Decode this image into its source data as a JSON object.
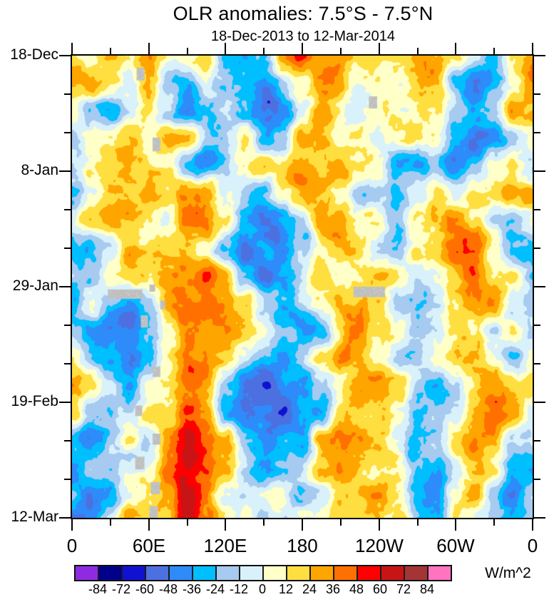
{
  "title": "OLR anomalies: 7.5°S - 7.5°N",
  "subtitle": "18-Dec-2013 to 12-Mar-2014",
  "axes": {
    "y": {
      "major": [
        {
          "label": "18-Dec",
          "day": 0
        },
        {
          "label": "8-Jan",
          "day": 21
        },
        {
          "label": "29-Jan",
          "day": 42
        },
        {
          "label": "19-Feb",
          "day": 63
        },
        {
          "label": "12-Mar",
          "day": 84
        }
      ],
      "minor_days": [
        7,
        14,
        28,
        35,
        49,
        56,
        70,
        77
      ],
      "span_days": 84
    },
    "x": {
      "major": [
        {
          "label": "0",
          "lon": 0
        },
        {
          "label": "60E",
          "lon": 60
        },
        {
          "label": "120E",
          "lon": 120
        },
        {
          "label": "180",
          "lon": 180
        },
        {
          "label": "120W",
          "lon": 240
        },
        {
          "label": "60W",
          "lon": 300
        },
        {
          "label": "0",
          "lon": 360
        }
      ],
      "minor_lons": [
        30,
        90,
        150,
        210,
        270,
        330
      ],
      "span_lons": 360
    }
  },
  "colorbar": {
    "units": "W/m^2",
    "tick_labels": [
      "-84",
      "-72",
      "-60",
      "-48",
      "-36",
      "-24",
      "-12",
      "0",
      "12",
      "24",
      "36",
      "48",
      "60",
      "72",
      "84"
    ],
    "box_colors": [
      "#8e2be2",
      "#00008b",
      "#1111d2",
      "#4d70e0",
      "#2e8bfa",
      "#00bfff",
      "#a6caf0",
      "#d9f1fa",
      "#ffffc8",
      "#ffde40",
      "#ffa500",
      "#ff7000",
      "#ff0000",
      "#c81414",
      "#a33535",
      "#ff73c0"
    ]
  },
  "chart_data": {
    "type": "heatmap",
    "title": "OLR anomalies: 7.5°S - 7.5°N",
    "subtitle": "18-Dec-2013 to 12-Mar-2014",
    "value_units": "W/m^2",
    "xlabel_ticks": [
      "0",
      "60E",
      "120E",
      "180",
      "120W",
      "60W",
      "0"
    ],
    "ylabel_ticks": [
      "18-Dec",
      "8-Jan",
      "29-Jan",
      "19-Feb",
      "12-Mar"
    ],
    "x_axis": "longitude_deg_east_0_to_360",
    "y_axis": "days_since_18_Dec_2013",
    "levels": [
      -84,
      -72,
      -60,
      -48,
      -36,
      -24,
      -12,
      0,
      12,
      24,
      36,
      48,
      60,
      72,
      84
    ],
    "palette": [
      "#8e2be2",
      "#00008b",
      "#1111d2",
      "#4d70e0",
      "#2e8bfa",
      "#00bfff",
      "#a6caf0",
      "#d9f1fa",
      "#ffffc8",
      "#ffde40",
      "#ffa500",
      "#ff7000",
      "#ff0000",
      "#c81414",
      "#a33535",
      "#ff73c0"
    ],
    "missing_color": "#bfbfbf",
    "x_lons": [
      0,
      15,
      30,
      45,
      60,
      75,
      90,
      105,
      120,
      135,
      150,
      165,
      180,
      195,
      210,
      225,
      240,
      255,
      270,
      285,
      300,
      315,
      330,
      345,
      360
    ],
    "y_days": [
      0,
      5,
      10,
      15,
      20,
      25,
      30,
      35,
      40,
      45,
      50,
      55,
      60,
      65,
      70,
      75,
      80,
      84
    ],
    "values": [
      [
        24,
        8,
        20,
        6,
        28,
        4,
        8,
        22,
        -20,
        -30,
        -20,
        40,
        52,
        30,
        30,
        10,
        6,
        20,
        30,
        24,
        10,
        -10,
        -20,
        20,
        40
      ],
      [
        30,
        36,
        10,
        -10,
        24,
        -24,
        -40,
        -10,
        -30,
        -36,
        -48,
        -20,
        10,
        36,
        24,
        8,
        6,
        10,
        28,
        20,
        -30,
        -55,
        -30,
        10,
        30
      ],
      [
        6,
        -20,
        -44,
        -10,
        20,
        -10,
        -48,
        -30,
        -10,
        -30,
        -52,
        -44,
        -10,
        20,
        8,
        4,
        10,
        6,
        20,
        10,
        -20,
        -40,
        -20,
        24,
        20
      ],
      [
        -10,
        8,
        20,
        26,
        10,
        30,
        20,
        -10,
        -20,
        8,
        -30,
        -20,
        24,
        30,
        6,
        4,
        -10,
        6,
        10,
        8,
        -30,
        -50,
        -36,
        -10,
        10
      ],
      [
        -20,
        6,
        24,
        30,
        24,
        10,
        -20,
        -44,
        -30,
        8,
        30,
        20,
        36,
        20,
        24,
        6,
        4,
        -30,
        -36,
        -20,
        -40,
        -20,
        8,
        20,
        -10
      ],
      [
        -24,
        -10,
        20,
        24,
        20,
        8,
        30,
        36,
        -10,
        -20,
        -30,
        8,
        36,
        28,
        10,
        -20,
        -10,
        -24,
        -10,
        20,
        -10,
        8,
        20,
        30,
        20
      ],
      [
        8,
        20,
        28,
        24,
        10,
        -10,
        36,
        42,
        10,
        -30,
        -48,
        -36,
        -20,
        30,
        36,
        10,
        8,
        -20,
        6,
        24,
        36,
        20,
        -10,
        -20,
        8
      ],
      [
        -24,
        -30,
        -10,
        24,
        10,
        20,
        30,
        10,
        -20,
        -44,
        -30,
        -48,
        -20,
        10,
        24,
        20,
        -10,
        -20,
        8,
        20,
        36,
        44,
        10,
        -20,
        -30
      ],
      [
        -10,
        -20,
        8,
        10,
        20,
        30,
        44,
        54,
        20,
        -30,
        -48,
        -30,
        -10,
        20,
        10,
        8,
        20,
        6,
        -10,
        8,
        24,
        36,
        20,
        8,
        -10
      ],
      [
        -30,
        8,
        -20,
        -36,
        -20,
        20,
        36,
        42,
        36,
        20,
        -10,
        -24,
        -10,
        8,
        24,
        30,
        20,
        -20,
        -24,
        -10,
        8,
        30,
        36,
        -10,
        -24
      ],
      [
        -20,
        -36,
        -48,
        -55,
        -30,
        8,
        30,
        24,
        36,
        30,
        8,
        -20,
        -36,
        -20,
        24,
        36,
        20,
        8,
        -24,
        -10,
        20,
        8,
        -20,
        8,
        -10
      ],
      [
        8,
        -20,
        -40,
        -48,
        -20,
        8,
        36,
        30,
        20,
        -10,
        -30,
        -44,
        -20,
        8,
        30,
        24,
        10,
        -20,
        -10,
        8,
        24,
        30,
        10,
        -24,
        8
      ],
      [
        30,
        20,
        -10,
        -30,
        10,
        24,
        42,
        30,
        -20,
        -40,
        -55,
        -36,
        -48,
        -20,
        10,
        30,
        36,
        20,
        -20,
        -30,
        -10,
        20,
        30,
        10,
        20
      ],
      [
        10,
        -20,
        -30,
        -10,
        8,
        20,
        48,
        36,
        -30,
        -48,
        -40,
        -55,
        -30,
        -36,
        20,
        24,
        30,
        8,
        -20,
        -24,
        -10,
        24,
        42,
        24,
        6
      ],
      [
        -24,
        -36,
        -20,
        8,
        -10,
        30,
        56,
        44,
        24,
        -20,
        -36,
        -30,
        -44,
        24,
        36,
        30,
        20,
        -10,
        -30,
        -20,
        24,
        36,
        20,
        -10,
        -20
      ],
      [
        -36,
        -20,
        -30,
        -10,
        8,
        36,
        62,
        48,
        20,
        -10,
        -30,
        -20,
        -10,
        20,
        30,
        24,
        10,
        8,
        -24,
        -36,
        -10,
        20,
        8,
        -30,
        -36
      ],
      [
        -20,
        -44,
        -30,
        8,
        20,
        30,
        68,
        40,
        -10,
        -20,
        -10,
        8,
        -20,
        -10,
        20,
        20,
        30,
        10,
        -30,
        -36,
        8,
        24,
        -20,
        -40,
        -20
      ],
      [
        -48,
        -36,
        -12,
        20,
        10,
        24,
        72,
        36,
        10,
        8,
        -24,
        -10,
        8,
        8,
        20,
        24,
        20,
        24,
        -24,
        -30,
        20,
        8,
        -24,
        -30,
        -24
      ]
    ],
    "missing_data_patches": [
      {
        "lon0": 50.5,
        "lon1": 56.6,
        "day0": 2.2,
        "day1": 4.5
      },
      {
        "lon0": 63.0,
        "lon1": 69.0,
        "day0": 14.9,
        "day1": 17.4
      },
      {
        "lon0": 232.0,
        "lon1": 238.5,
        "day0": 7.4,
        "day1": 9.6
      },
      {
        "lon0": 28.0,
        "lon1": 55.0,
        "day0": 42.5,
        "day1": 44.2
      },
      {
        "lon0": 60.5,
        "lon1": 65.0,
        "day0": 41.6,
        "day1": 42.9
      },
      {
        "lon0": 68.8,
        "lon1": 72.7,
        "day0": 44.5,
        "day1": 46.1
      },
      {
        "lon0": 220.0,
        "lon1": 244.6,
        "day0": 42.0,
        "day1": 43.9
      },
      {
        "lon0": 53.8,
        "lon1": 59.3,
        "day0": 47.2,
        "day1": 49.4
      },
      {
        "lon0": 63.0,
        "lon1": 69.0,
        "day0": 56.5,
        "day1": 58.4
      },
      {
        "lon0": 49.4,
        "lon1": 54.9,
        "day0": 63.6,
        "day1": 65.5
      },
      {
        "lon0": 63.0,
        "lon1": 69.0,
        "day0": 68.7,
        "day1": 70.7
      },
      {
        "lon0": 49.4,
        "lon1": 56.6,
        "day0": 72.9,
        "day1": 75.2
      },
      {
        "lon0": 61.6,
        "lon1": 68.8,
        "day0": 77.5,
        "day1": 79.7
      },
      {
        "lon0": 60.5,
        "lon1": 67.1,
        "day0": 81.9,
        "day1": 84.0
      }
    ],
    "legend_position": "bottom",
    "grid": false
  }
}
